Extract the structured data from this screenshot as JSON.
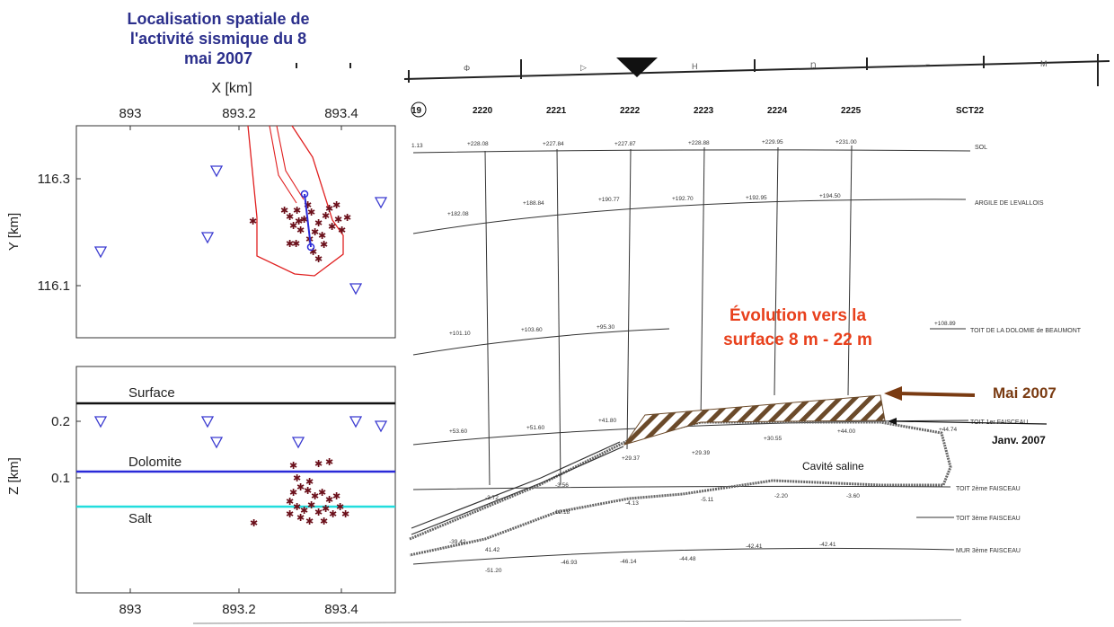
{
  "title_lines": [
    "Localisation spatiale de",
    "l'activité sismique du 8",
    "mai 2007"
  ],
  "top_plot": {
    "xlabel": "X [km]",
    "ylabel": "Y [km]",
    "x_ticks": [
      "893",
      "893.2",
      "893.4"
    ],
    "y_ticks": [
      "116.3",
      "116.1"
    ]
  },
  "bottom_plot": {
    "ylabel": "Z [km]",
    "x_ticks": [
      "893",
      "893.2",
      "893.4"
    ],
    "y_ticks": [
      "0.2",
      "0.1"
    ],
    "layers": [
      {
        "name": "Surface",
        "color": "#111111"
      },
      {
        "name": "Dolomite",
        "color": "#2a2ad8"
      },
      {
        "name": "Salt",
        "color": "#22dddd"
      }
    ]
  },
  "section": {
    "columns": [
      "19",
      "2220",
      "2221",
      "2222",
      "2223",
      "2224",
      "2225",
      "SCT22"
    ],
    "ruler_marks": [
      "Φ",
      "▷",
      "H",
      "Ŋ",
      "⌐",
      "M"
    ],
    "elev_row1": [
      "1.13",
      "+228.08",
      "+227.84",
      "+227.87",
      "+228.88",
      "+229.95",
      "+231.00"
    ],
    "elev_row2": [
      "+182.08",
      "+188.84",
      "+190.77",
      "+192.70",
      "+192.95",
      "+194.50"
    ],
    "elev_row3": [
      "+101.10",
      "+103.60",
      "+95.30"
    ],
    "elev_row4": [
      "+53.60",
      "+51.60",
      "+41.80",
      "+29.37",
      "+29.39",
      "+30.55",
      "+44.00",
      "+44.74"
    ],
    "elev_row5": [
      "-3.72",
      "-3.56",
      "-4.13",
      "-5.11",
      "-2.20",
      "-3.60",
      "+108.89"
    ],
    "elev_row6": [
      "12.18",
      "-39.42"
    ],
    "elev_row7": [
      "41.42",
      "-42.41",
      "-42.41"
    ],
    "elev_row8": [
      "-51.20",
      "-46.93",
      "-46.14",
      "-44.48"
    ],
    "layer_labels": [
      "SOL",
      "ARGILE DE LEVALLOIS",
      "TOIT DE LA DOLOMIE de BEAUMONT",
      "TOIT 1er FAISCEAU",
      "TOIT 2ème FAISCEAU",
      "TOIT 3ème FAISCEAU",
      "MUR 3ème FAISCEAU"
    ],
    "evolution_lines": [
      "Évolution vers la",
      "surface 8 m - 22 m"
    ],
    "mai_2007": "Mai 2007",
    "janv_2007": "Janv. 2007",
    "cavite": "Cavité saline",
    "colors": {
      "evolution": "#e8401c",
      "arrow": "#7a3b12",
      "hatch": "#6b4a2a"
    }
  }
}
